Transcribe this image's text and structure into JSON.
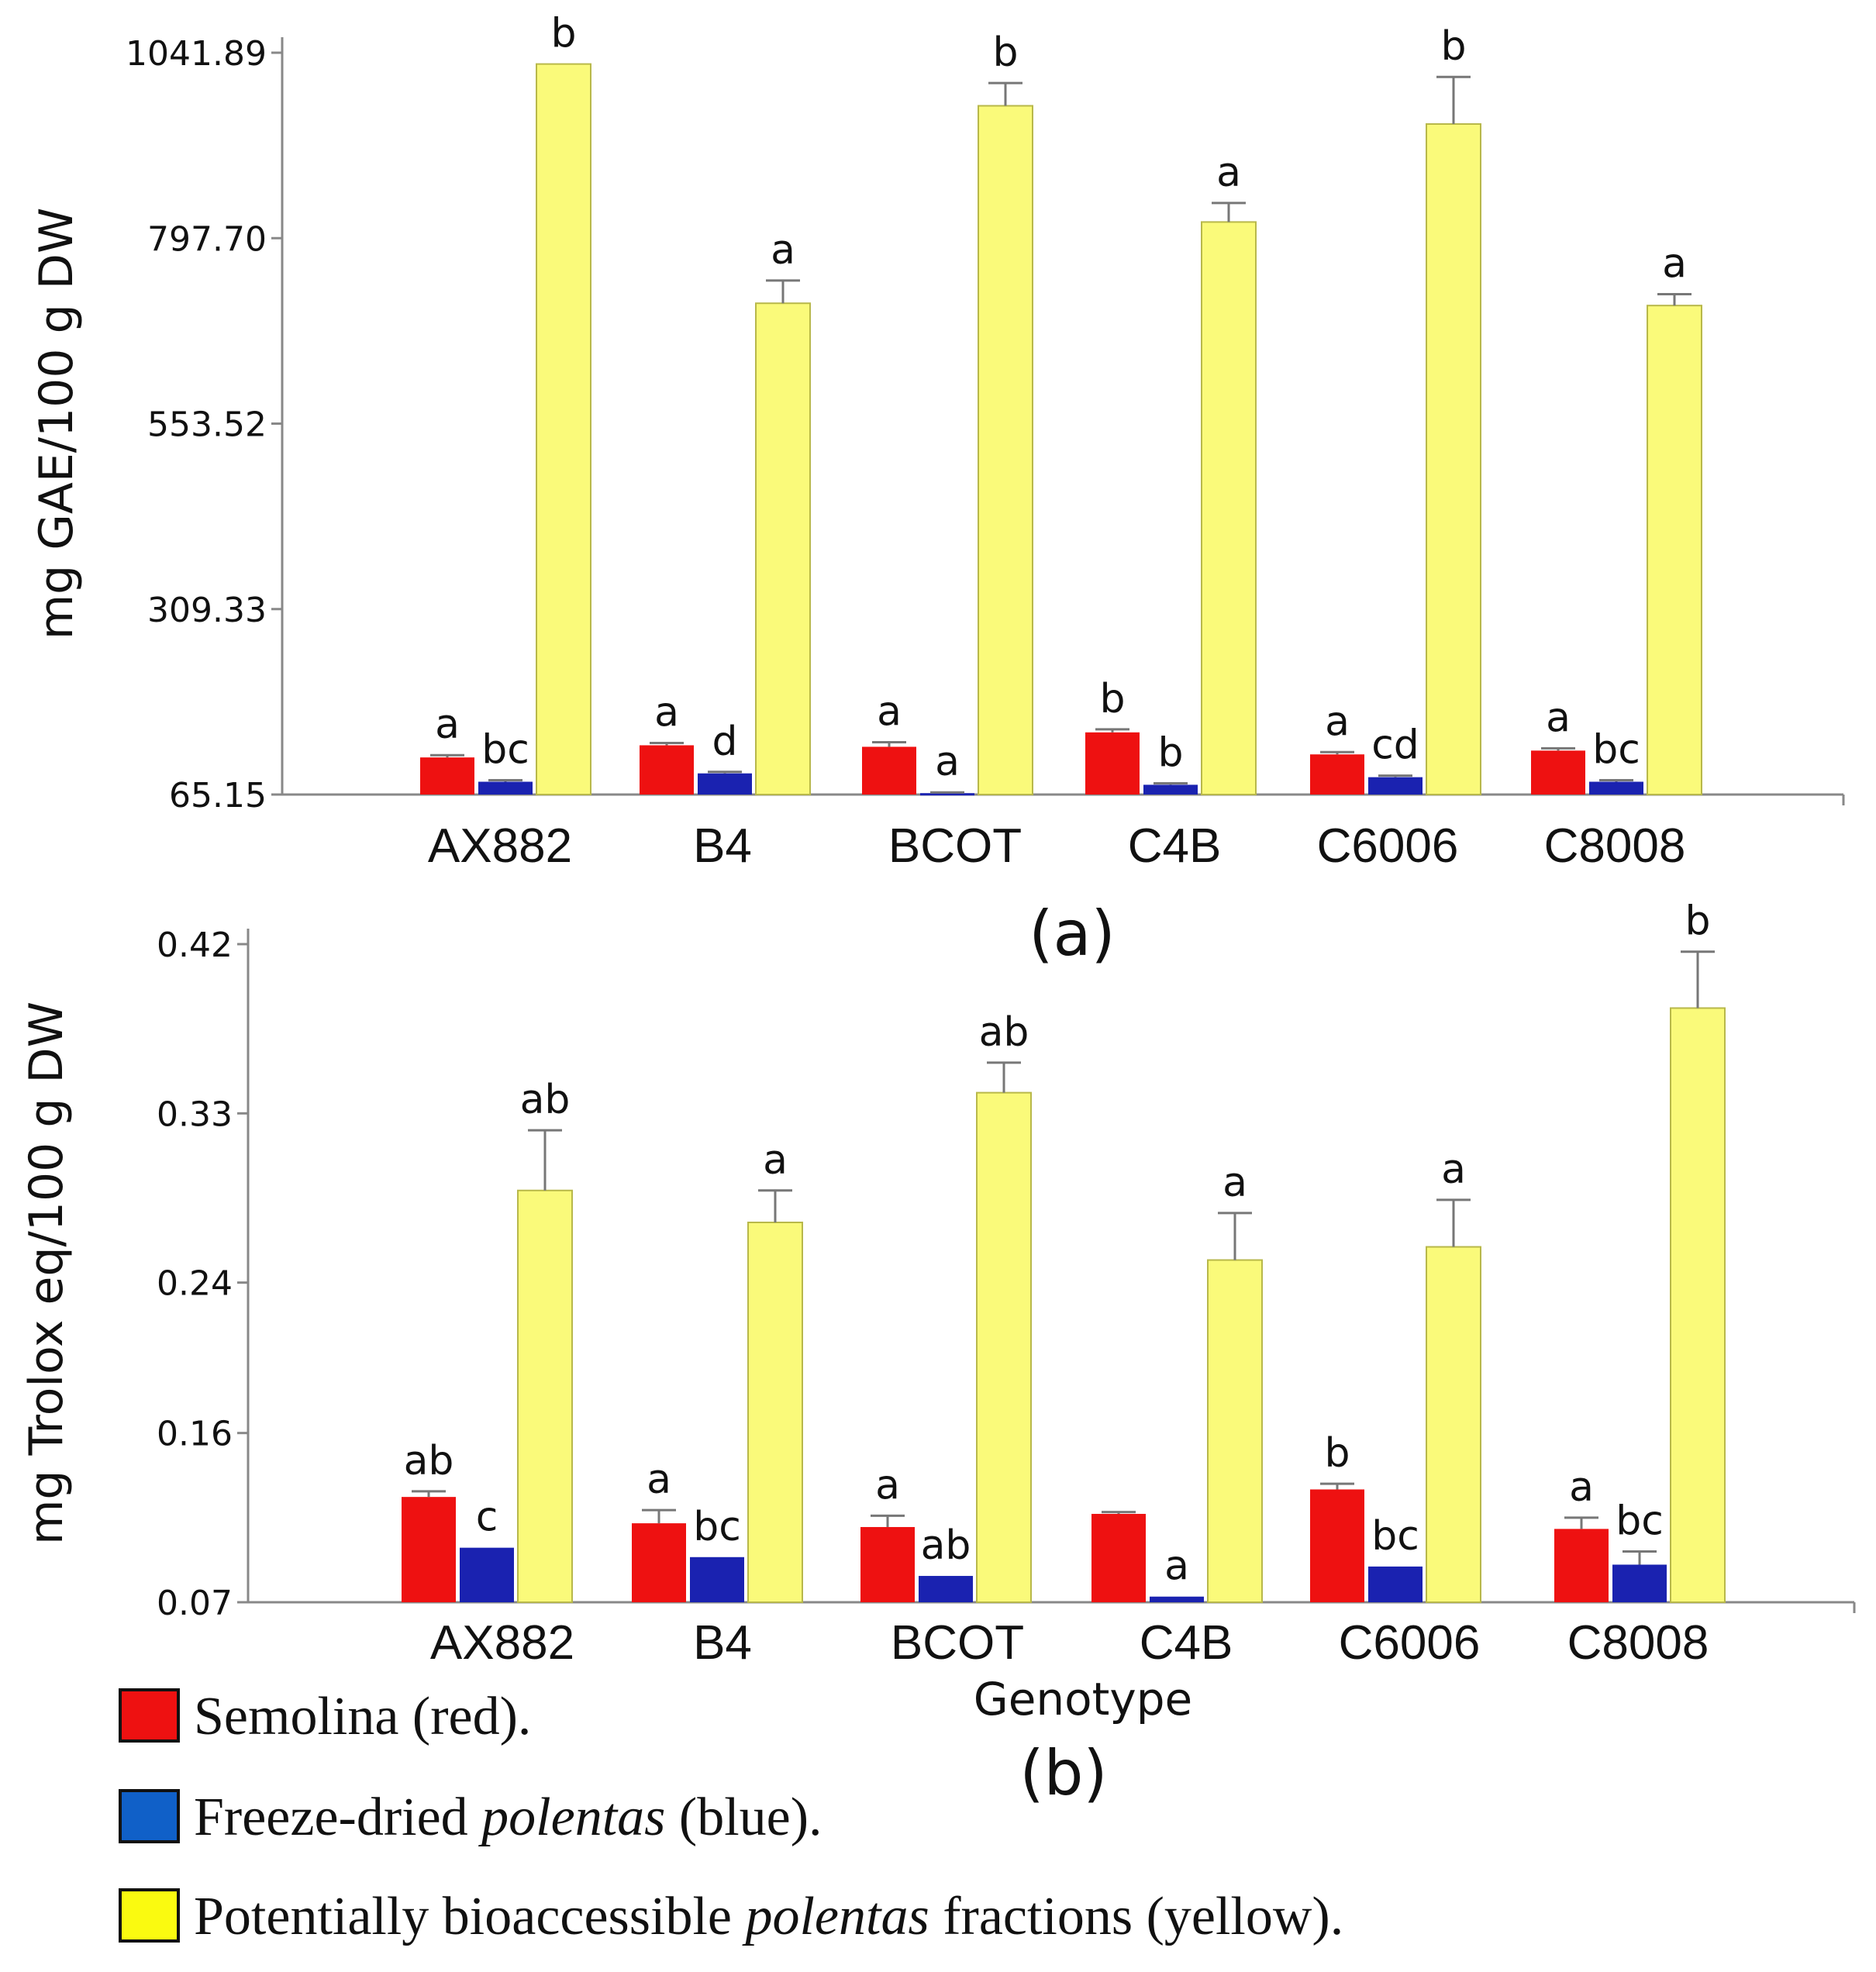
{
  "chart_data": [
    {
      "type": "bar",
      "panel_label": "(a)",
      "ylabel": "mg GAE/100 g DW",
      "xlabel": "",
      "yticks": [
        "65.15",
        "309.33",
        "553.52",
        "797.70",
        "1041.89"
      ],
      "ylim": [
        65.15,
        1041.89
      ],
      "categories": [
        "AX882",
        "B4",
        "BCOT",
        "C4B",
        "C6006",
        "C8008"
      ],
      "series": [
        {
          "name": "Semolina",
          "color": "#ee1111",
          "values": [
            114,
            130,
            128,
            147,
            118,
            123
          ],
          "errors": [
            3,
            3,
            6,
            4,
            3,
            3
          ],
          "letters": [
            "a",
            "a",
            "a",
            "b",
            "a",
            "a"
          ]
        },
        {
          "name": "Freeze-dried polentas",
          "color": "#1a22b0",
          "values": [
            82,
            93,
            67,
            78,
            88,
            82
          ],
          "errors": [
            2,
            2,
            1,
            2,
            2,
            2
          ],
          "letters": [
            "bc",
            "d",
            "a",
            "b",
            "cd",
            "bc"
          ]
        },
        {
          "name": "Potentially bioaccessible polentas fractions",
          "color": "#fafa7a",
          "values": [
            1027,
            712,
            972,
            819,
            948,
            709
          ],
          "errors": [
            0,
            30,
            30,
            25,
            62,
            15
          ],
          "letters": [
            "b",
            "a",
            "b",
            "a",
            "b",
            "a"
          ]
        }
      ]
    },
    {
      "type": "bar",
      "panel_label": "(b)",
      "ylabel": "mg Trolox eq/100 g DW",
      "xlabel": "Genotype",
      "yticks": [
        "0.07",
        "0.16",
        "0.24",
        "0.33",
        "0.42"
      ],
      "ylim": [
        0.07,
        0.42
      ],
      "categories": [
        "AX882",
        "B4",
        "BCOT",
        "C4B",
        "C6006",
        "C8008"
      ],
      "series": [
        {
          "name": "Semolina",
          "color": "#ee1111",
          "values": [
            0.126,
            0.112,
            0.11,
            0.117,
            0.13,
            0.109
          ],
          "errors": [
            0.003,
            0.007,
            0.006,
            0.001,
            0.003,
            0.006
          ],
          "letters": [
            "ab",
            "a",
            "a",
            "",
            "b",
            "a"
          ]
        },
        {
          "name": "Freeze-dried polentas",
          "color": "#1a22b0",
          "values": [
            0.099,
            0.094,
            0.084,
            0.073,
            0.089,
            0.09
          ],
          "errors": [
            0,
            0,
            0,
            0,
            0,
            0.007
          ],
          "letters": [
            "c",
            "bc",
            "ab",
            "a",
            "bc",
            "bc"
          ]
        },
        {
          "name": "Potentially bioaccessible polentas fractions",
          "color": "#fafa7a",
          "values": [
            0.289,
            0.272,
            0.341,
            0.252,
            0.259,
            0.386
          ],
          "errors": [
            0.032,
            0.017,
            0.016,
            0.025,
            0.025,
            0.03
          ],
          "letters": [
            "ab",
            "a",
            "ab",
            "a",
            "a",
            "b"
          ]
        }
      ]
    }
  ],
  "legend": {
    "items": [
      {
        "color": "#ee1111",
        "parts": [
          {
            "text": "Semolina (red).",
            "italic": false
          }
        ]
      },
      {
        "color": "#1060c8",
        "parts": [
          {
            "text": "Freeze-dried ",
            "italic": false
          },
          {
            "text": "polentas",
            "italic": true
          },
          {
            "text": " (blue).",
            "italic": false
          }
        ]
      },
      {
        "color": "#fafa10",
        "parts": [
          {
            "text": "Potentially bioaccessible ",
            "italic": false
          },
          {
            "text": "polentas",
            "italic": true
          },
          {
            "text": " fractions (yellow).",
            "italic": false
          }
        ]
      }
    ]
  }
}
